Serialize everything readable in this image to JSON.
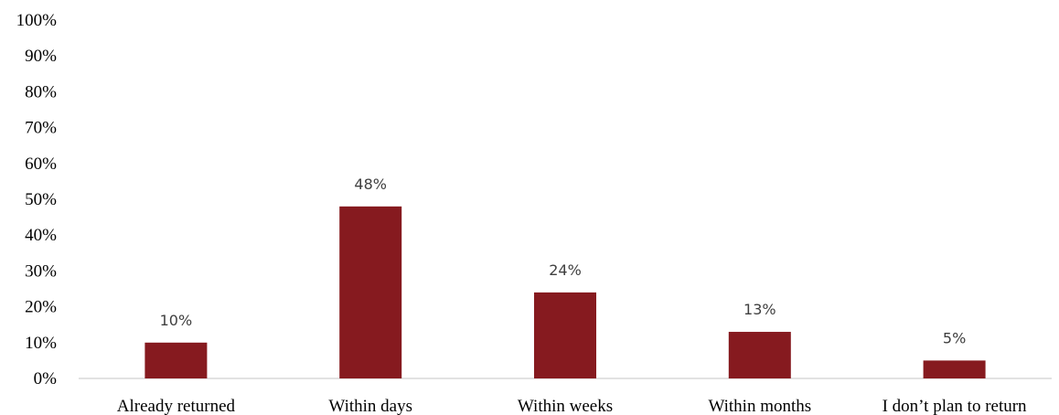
{
  "chart_data": {
    "type": "bar",
    "title": "",
    "xlabel": "",
    "ylabel": "",
    "categories": [
      "Already returned",
      "Within days",
      "Within weeks",
      "Within months",
      "I don’t plan to return"
    ],
    "values": [
      10,
      48,
      24,
      13,
      5
    ],
    "data_labels": [
      "10%",
      "48%",
      "24%",
      "13%",
      "5%"
    ],
    "ylim": [
      0,
      100
    ],
    "y_ticks": [
      0,
      10,
      20,
      30,
      40,
      50,
      60,
      70,
      80,
      90,
      100
    ],
    "y_tick_labels": [
      "0%",
      "10%",
      "20%",
      "30%",
      "40%",
      "50%",
      "60%",
      "70%",
      "80%",
      "90%",
      "100%"
    ],
    "grid": false,
    "legend": "none",
    "bar_color": "#861a1f",
    "axis_color": "#d9d9d9"
  }
}
